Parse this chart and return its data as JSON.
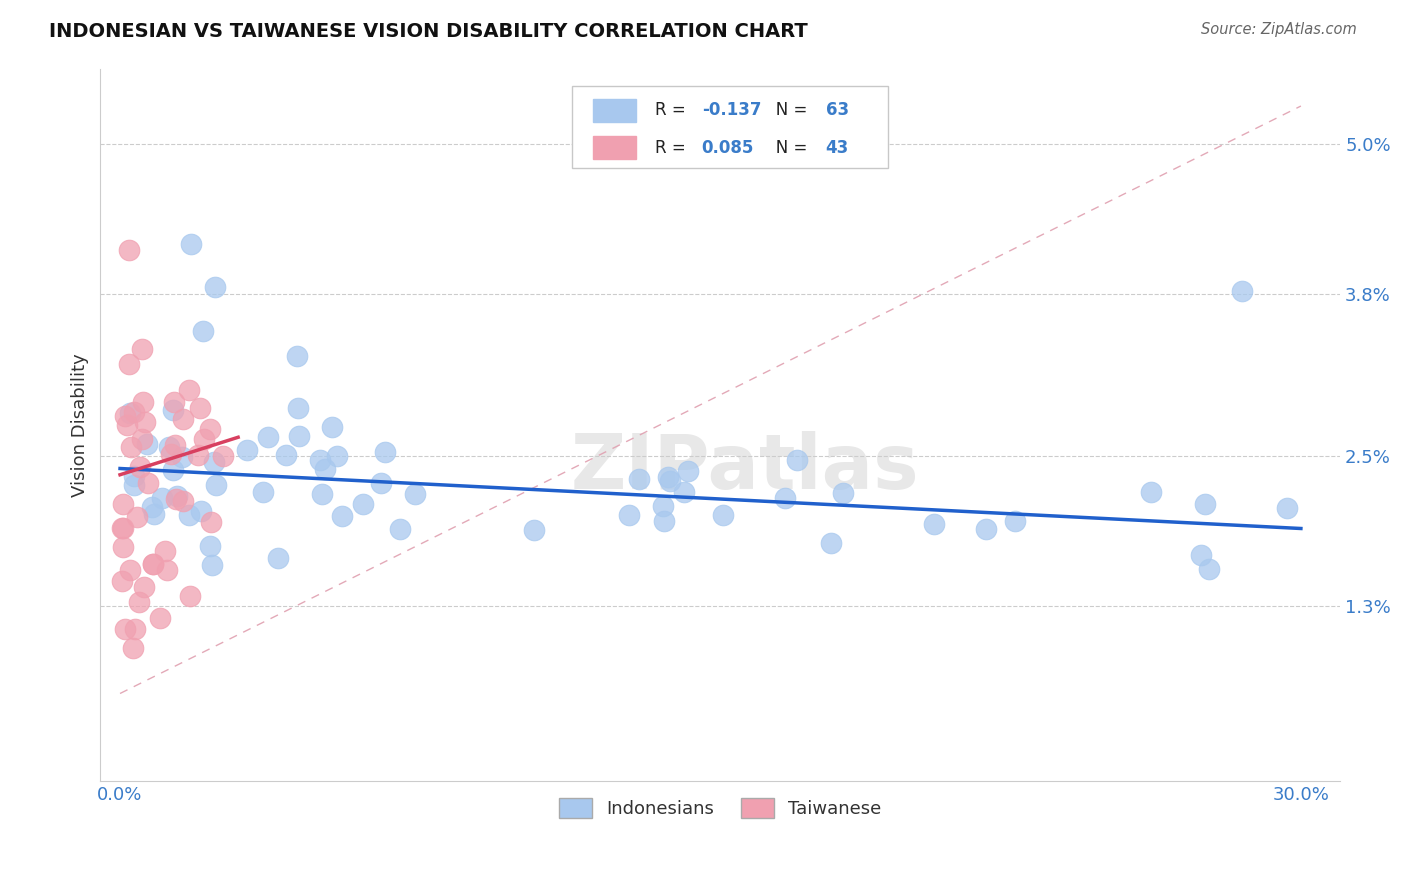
{
  "title": "INDONESIAN VS TAIWANESE VISION DISABILITY CORRELATION CHART",
  "source": "Source: ZipAtlas.com",
  "ylabel": "Vision Disability",
  "xlim": [
    -0.5,
    31.0
  ],
  "ylim": [
    -0.1,
    5.6
  ],
  "y_ticks": [
    1.3,
    2.5,
    3.8,
    5.0
  ],
  "y_tick_labels": [
    "1.3%",
    "2.5%",
    "3.8%",
    "5.0%"
  ],
  "x_tick_labels": [
    "0.0%",
    "30.0%"
  ],
  "R_blue": -0.137,
  "N_blue": 63,
  "R_pink": 0.085,
  "N_pink": 43,
  "blue_color": "#A8C8EE",
  "pink_color": "#F0A0B0",
  "line_blue_color": "#2060CC",
  "line_pink_color": "#D84060",
  "diag_color": "#E0A0B0",
  "legend_label_blue": "Indonesians",
  "legend_label_pink": "Taiwanese",
  "indo_x": [
    0.3,
    0.5,
    0.6,
    0.7,
    0.8,
    0.9,
    1.0,
    1.1,
    1.2,
    1.3,
    1.4,
    1.5,
    1.7,
    1.9,
    2.1,
    2.3,
    2.5,
    2.7,
    3.0,
    3.3,
    3.7,
    4.1,
    4.5,
    5.0,
    5.5,
    6.0,
    6.5,
    7.0,
    7.5,
    8.0,
    8.5,
    9.0,
    9.5,
    10.0,
    10.5,
    11.0,
    11.5,
    12.0,
    12.5,
    13.0,
    13.5,
    14.0,
    14.5,
    15.0,
    15.5,
    16.0,
    17.0,
    18.0,
    19.0,
    20.0,
    21.0,
    22.0,
    23.0,
    24.0,
    25.0,
    26.0,
    27.0,
    28.0,
    29.0,
    29.5,
    1.8,
    6.2,
    28.8
  ],
  "indo_y": [
    2.5,
    2.4,
    2.6,
    2.5,
    2.4,
    2.3,
    2.4,
    2.5,
    2.3,
    2.4,
    2.2,
    2.5,
    2.3,
    2.4,
    2.5,
    2.4,
    2.3,
    2.5,
    2.4,
    2.2,
    2.3,
    2.4,
    2.3,
    2.2,
    2.3,
    2.4,
    2.3,
    2.2,
    2.1,
    2.3,
    2.2,
    2.1,
    2.2,
    2.1,
    2.2,
    2.1,
    2.0,
    2.1,
    2.0,
    2.1,
    2.0,
    1.9,
    2.0,
    2.1,
    1.9,
    2.0,
    1.9,
    2.0,
    1.9,
    1.8,
    1.9,
    1.8,
    1.7,
    1.8,
    1.5,
    1.4,
    1.4,
    1.3,
    1.5,
    1.3,
    4.2,
    3.4,
    3.8
  ],
  "tai_x": [
    0.05,
    0.08,
    0.1,
    0.12,
    0.15,
    0.18,
    0.2,
    0.22,
    0.25,
    0.28,
    0.3,
    0.32,
    0.35,
    0.38,
    0.4,
    0.42,
    0.45,
    0.48,
    0.5,
    0.55,
    0.6,
    0.65,
    0.7,
    0.75,
    0.8,
    0.85,
    0.9,
    0.95,
    1.0,
    1.05,
    1.1,
    1.15,
    1.2,
    1.3,
    1.4,
    1.5,
    1.6,
    1.8,
    2.0,
    0.25,
    0.15,
    0.1,
    2.2
  ],
  "tai_y": [
    2.2,
    2.0,
    1.8,
    1.6,
    1.4,
    1.2,
    1.0,
    0.8,
    0.6,
    2.3,
    2.1,
    1.9,
    1.7,
    1.5,
    1.3,
    1.1,
    2.4,
    2.2,
    2.3,
    2.1,
    2.2,
    2.0,
    1.9,
    2.1,
    2.2,
    2.0,
    2.1,
    2.3,
    2.2,
    2.0,
    1.9,
    2.1,
    2.2,
    2.0,
    2.1,
    2.3,
    2.2,
    2.1,
    2.2,
    2.4,
    2.8,
    2.5,
    2.5
  ],
  "watermark": "ZIPatlas",
  "bg_color": "#FFFFFF",
  "grid_color": "#CCCCCC",
  "accent_color": "#3A7CC9"
}
